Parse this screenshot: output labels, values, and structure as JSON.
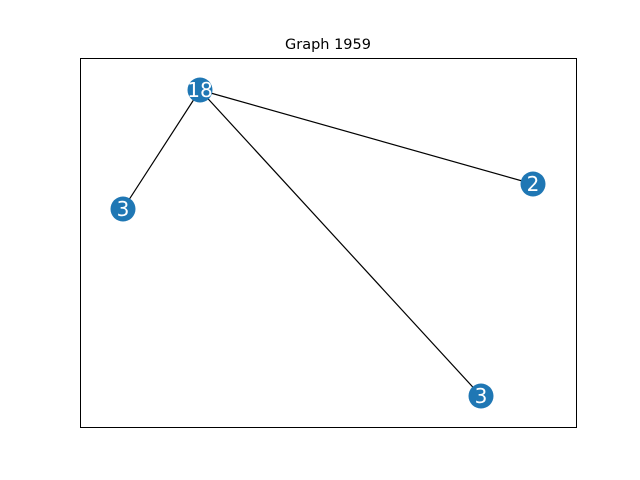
{
  "title": "Graph 1959",
  "node_color": "#1f77b4",
  "edge_color": "#000000",
  "nodes": [
    {
      "id": "n0",
      "label": "18"
    },
    {
      "id": "n1",
      "label": "3"
    },
    {
      "id": "n2",
      "label": "2"
    },
    {
      "id": "n3",
      "label": "3"
    }
  ],
  "edges": [
    {
      "from": "n0",
      "to": "n1"
    },
    {
      "from": "n0",
      "to": "n2"
    },
    {
      "from": "n0",
      "to": "n3"
    }
  ]
}
